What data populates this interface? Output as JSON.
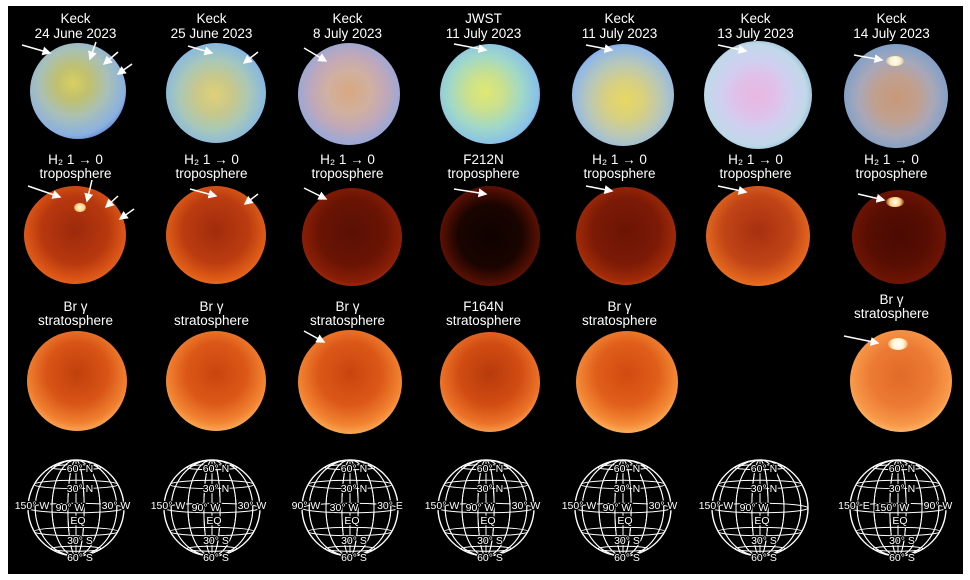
{
  "columns": [
    {
      "title1": "Keck",
      "title2": "24 June 2023",
      "h2": "H₂ 1 → 0",
      "h2b": "troposphere",
      "br": "Br γ",
      "brb": "stratosphere",
      "grid": {
        "n1": "60° N",
        "n2": "30° N",
        "left": "150° W",
        "mid": "90° W",
        "right": "30° W",
        "eq": "EQ",
        "s1": "30° S",
        "s2": "60° S"
      }
    },
    {
      "title1": "Keck",
      "title2": "25 June 2023",
      "h2": "H₂ 1 → 0",
      "h2b": "troposphere",
      "br": "Br γ",
      "brb": "stratosphere",
      "grid": {
        "n1": "60° N",
        "n2": "30° N",
        "left": "150° W",
        "mid": "90° W",
        "right": "30° W",
        "eq": "EQ",
        "s1": "30° S",
        "s2": "60° S"
      }
    },
    {
      "title1": "Keck",
      "title2": "8 July 2023",
      "h2": "H₂ 1 → 0",
      "h2b": "troposphere",
      "br": "Br γ",
      "brb": "stratosphere",
      "grid": {
        "n1": "60° N",
        "n2": "30° N",
        "left": "90° W",
        "mid": "30° W",
        "right": "30° E",
        "eq": "EQ",
        "s1": "30° S",
        "s2": "60° S"
      }
    },
    {
      "title1": "JWST",
      "title2": "11 July 2023",
      "h2": "F212N",
      "h2b": "troposphere",
      "br": "F164N",
      "brb": "stratosphere",
      "grid": {
        "n1": "60° N",
        "n2": "30° N",
        "left": "150° W",
        "mid": "90° W",
        "right": "30° W",
        "eq": "EQ",
        "s1": "30° S",
        "s2": "60° S"
      }
    },
    {
      "title1": "Keck",
      "title2": "11 July 2023",
      "h2": "H₂ 1 → 0",
      "h2b": "troposphere",
      "br": "Br γ",
      "brb": "stratosphere",
      "grid": {
        "n1": "60° N",
        "n2": "30° N",
        "left": "150° W",
        "mid": "90° W",
        "right": "30° W",
        "eq": "EQ",
        "s1": "30° S",
        "s2": "60° S"
      }
    },
    {
      "title1": "Keck",
      "title2": "13 July 2023",
      "h2": "H₂ 1 → 0",
      "h2b": "troposphere",
      "br": "",
      "brb": "",
      "grid": {
        "n1": "60° N",
        "n2": "30° N",
        "left": "150° W",
        "mid": "90° W",
        "right": "",
        "eq": "EQ",
        "s1": "30° S",
        "s2": "60° S"
      }
    },
    {
      "title1": "Keck",
      "title2": "14 July 2023",
      "h2": "H₂ 1 → 0",
      "h2b": "troposphere",
      "br": "Br γ",
      "brb": "stratosphere",
      "grid": {
        "n1": "60° N",
        "n2": "30° N",
        "left": "150° E",
        "mid": "150° W",
        "right": "90° W",
        "eq": "EQ",
        "s1": "30° S",
        "s2": "60° S"
      }
    }
  ],
  "colors": {
    "background": "#000000",
    "frame": "#ffffff",
    "text": "#ffffff",
    "arrow": "#ffffff"
  }
}
